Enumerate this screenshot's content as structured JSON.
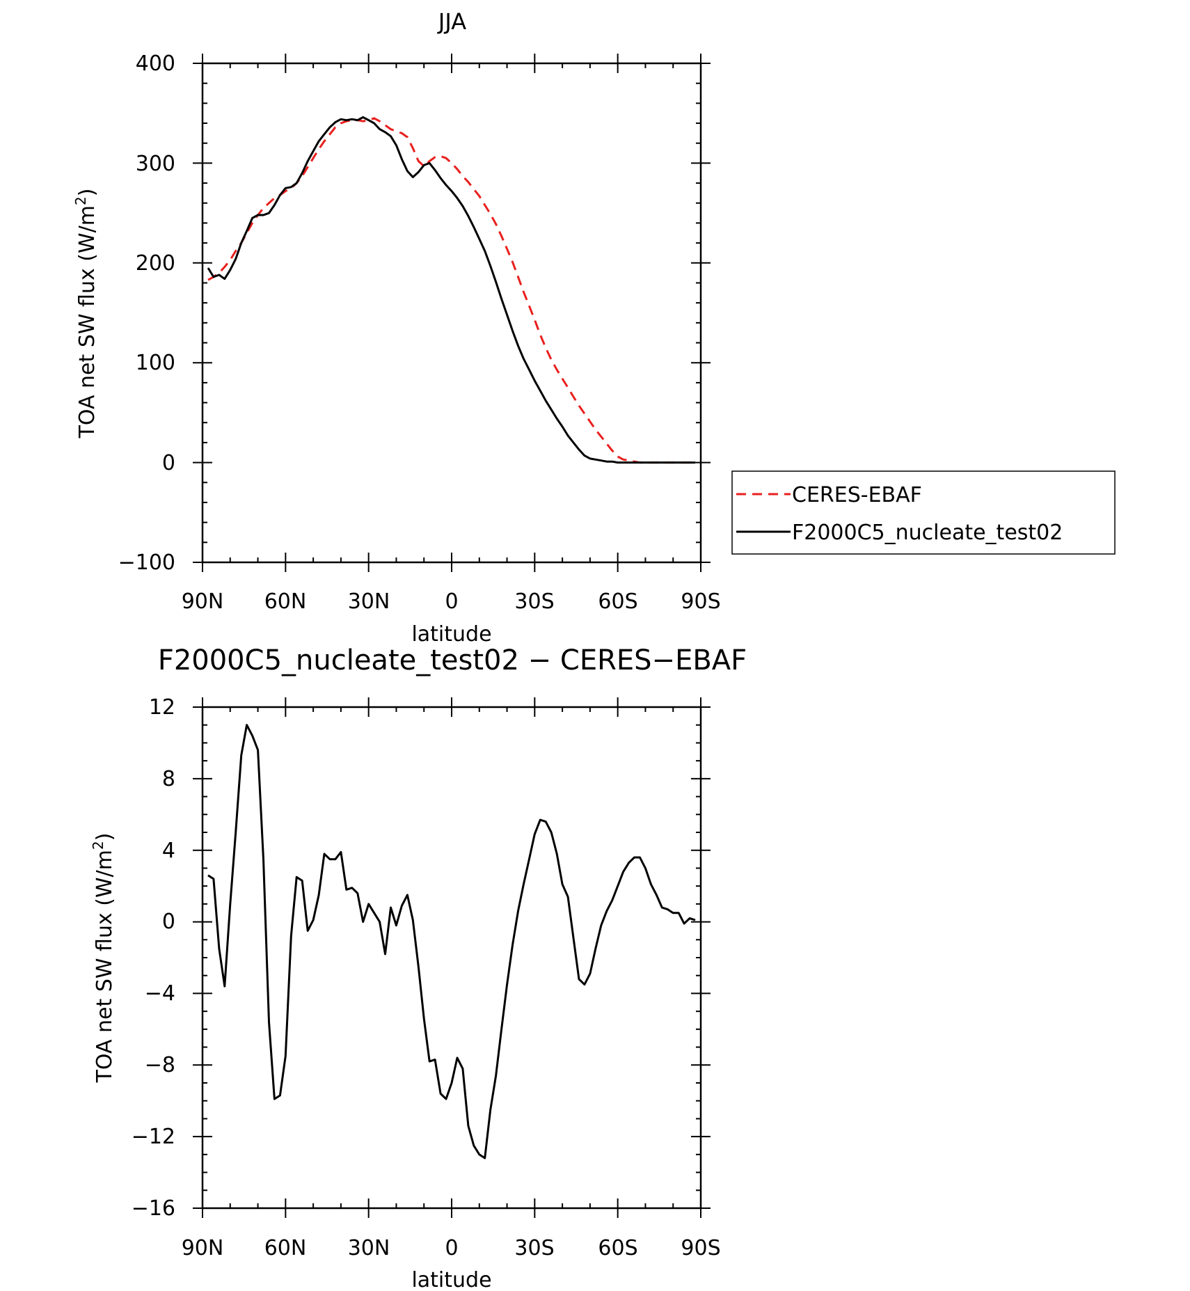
{
  "chart_data": [
    {
      "type": "line",
      "title": "JJA",
      "xlabel": "latitude",
      "ylabel_main": "TOA net SW flux (W/m",
      "ylabel_sup": "2",
      "ylabel_close": ")",
      "xlim": [
        90,
        -90
      ],
      "ylim": [
        -100,
        400
      ],
      "xticks": [
        90,
        60,
        30,
        0,
        -30,
        -60,
        -90
      ],
      "xtick_labels": [
        "90N",
        "60N",
        "30N",
        "0",
        "30S",
        "60S",
        "90S"
      ],
      "yticks": [
        -100,
        0,
        100,
        200,
        300,
        400
      ],
      "ytick_labels": [
        "−100",
        "0",
        "100",
        "200",
        "300",
        "400"
      ],
      "legend_position": "right",
      "series": [
        {
          "name": "CERES-EBAF",
          "color": "#e8201e",
          "dash": "dashed",
          "x": [
            88,
            86,
            84,
            82,
            80,
            78,
            76,
            74,
            72,
            70,
            68,
            66,
            64,
            62,
            60,
            58,
            56,
            54,
            52,
            50,
            48,
            46,
            44,
            42,
            40,
            38,
            36,
            34,
            32,
            30,
            28,
            26,
            24,
            22,
            20,
            18,
            16,
            14,
            12,
            10,
            8,
            6,
            4,
            2,
            0,
            -2,
            -4,
            -6,
            -8,
            -10,
            -12,
            -14,
            -16,
            -18,
            -20,
            -22,
            -24,
            -26,
            -28,
            -30,
            -32,
            -34,
            -36,
            -38,
            -40,
            -42,
            -44,
            -46,
            -48,
            -50,
            -52,
            -54,
            -56,
            -58,
            -60,
            -62,
            -64,
            -66,
            -68,
            -70,
            -72,
            -74,
            -76,
            -78,
            -80,
            -82,
            -84,
            -86,
            -88
          ],
          "y": [
            183,
            186,
            190,
            196,
            203,
            212,
            220,
            230,
            240,
            248,
            255,
            260,
            265,
            268,
            272,
            275,
            280,
            287,
            296,
            305,
            314,
            322,
            329,
            336,
            340,
            342,
            343,
            343,
            342,
            343,
            345,
            342,
            338,
            334,
            332,
            330,
            326,
            315,
            302,
            297,
            302,
            306,
            307,
            305,
            300,
            294,
            287,
            281,
            274,
            267,
            258,
            249,
            239,
            227,
            214,
            201,
            186,
            171,
            157,
            143,
            128,
            115,
            103,
            93,
            84,
            75,
            66,
            57,
            49,
            41,
            33,
            26,
            19,
            12,
            6,
            3,
            2,
            1,
            0,
            0,
            0,
            0,
            0,
            0,
            0,
            0,
            0,
            0,
            0
          ]
        },
        {
          "name": "F2000C5_nucleate_test02",
          "color": "#000000",
          "dash": "solid",
          "x": [
            88,
            86,
            84,
            82,
            80,
            78,
            76,
            74,
            72,
            70,
            68,
            66,
            64,
            62,
            60,
            58,
            56,
            54,
            52,
            50,
            48,
            46,
            44,
            42,
            40,
            38,
            36,
            34,
            32,
            30,
            28,
            26,
            24,
            22,
            20,
            18,
            16,
            14,
            12,
            10,
            8,
            6,
            4,
            2,
            0,
            -2,
            -4,
            -6,
            -8,
            -10,
            -12,
            -14,
            -16,
            -18,
            -20,
            -22,
            -24,
            -26,
            -28,
            -30,
            -32,
            -34,
            -36,
            -38,
            -40,
            -42,
            -44,
            -46,
            -48,
            -50,
            -52,
            -54,
            -56,
            -58,
            -60,
            -62,
            -64,
            -66,
            -68,
            -70,
            -72,
            -74,
            -76,
            -78,
            -80,
            -82,
            -84,
            -86,
            -88
          ],
          "y": [
            195,
            186,
            188,
            184,
            193,
            204,
            220,
            232,
            245,
            248,
            248,
            250,
            258,
            268,
            275,
            276,
            280,
            290,
            302,
            312,
            322,
            329,
            336,
            341,
            344,
            343,
            344,
            343,
            346,
            343,
            340,
            334,
            331,
            327,
            318,
            304,
            292,
            286,
            291,
            298,
            300,
            293,
            285,
            278,
            272,
            265,
            257,
            247,
            236,
            224,
            212,
            197,
            181,
            164,
            148,
            132,
            117,
            104,
            93,
            82,
            72,
            62,
            53,
            44,
            36,
            27,
            20,
            13,
            7,
            4,
            3,
            2,
            1,
            1,
            0,
            0,
            0,
            0,
            0,
            0,
            0,
            0,
            0,
            0,
            0,
            0,
            0,
            0,
            0
          ]
        }
      ]
    },
    {
      "type": "line",
      "title": "F2000C5_nucleate_test02 − CERES−EBAF",
      "xlabel": "latitude",
      "ylabel_main": "TOA net SW flux (W/m",
      "ylabel_sup": "2",
      "ylabel_close": ")",
      "xlim": [
        90,
        -90
      ],
      "ylim": [
        -16,
        12
      ],
      "xticks": [
        90,
        60,
        30,
        0,
        -30,
        -60,
        -90
      ],
      "xtick_labels": [
        "90N",
        "60N",
        "30N",
        "0",
        "30S",
        "60S",
        "90S"
      ],
      "yticks": [
        -16,
        -12,
        -8,
        -4,
        0,
        4,
        8,
        12
      ],
      "ytick_labels": [
        "−16",
        "−12",
        "−8",
        "−4",
        "0",
        "4",
        "8",
        "12"
      ],
      "series": [
        {
          "color": "#000000",
          "dash": "solid",
          "x": [
            88,
            86,
            84,
            82,
            80,
            78,
            76,
            74,
            72,
            70,
            68,
            66,
            64,
            62,
            60,
            58,
            56,
            54,
            52,
            50,
            48,
            46,
            44,
            42,
            40,
            38,
            36,
            34,
            32,
            30,
            28,
            26,
            24,
            22,
            20,
            18,
            16,
            14,
            12,
            10,
            8,
            6,
            4,
            2,
            0,
            -2,
            -4,
            -6,
            -8,
            -10,
            -12,
            -14,
            -16,
            -18,
            -20,
            -22,
            -24,
            -26,
            -28,
            -30,
            -32,
            -34,
            -36,
            -38,
            -40,
            -42,
            -44,
            -46,
            -48,
            -50,
            -52,
            -54,
            -56,
            -58,
            -60,
            -62,
            -64,
            -66,
            -68,
            -70,
            -72,
            -74,
            -76,
            -78,
            -80,
            -82,
            -84,
            -86,
            -88
          ],
          "y": [
            2.6,
            2.4,
            -1.5,
            -3.6,
            1.0,
            5.0,
            9.3,
            11.0,
            10.4,
            9.6,
            3.5,
            -5.6,
            -9.9,
            -9.7,
            -7.5,
            -0.8,
            2.5,
            2.3,
            -0.5,
            0.1,
            1.5,
            3.8,
            3.5,
            3.5,
            3.9,
            1.8,
            1.9,
            1.6,
            0.0,
            1.0,
            0.5,
            0.0,
            -1.8,
            0.8,
            -0.2,
            0.9,
            1.5,
            0.1,
            -2.5,
            -5.4,
            -7.8,
            -7.7,
            -9.6,
            -9.9,
            -9.0,
            -7.6,
            -8.2,
            -11.4,
            -12.5,
            -13.0,
            -13.2,
            -10.5,
            -8.6,
            -6.0,
            -3.5,
            -1.3,
            0.6,
            2.1,
            3.5,
            4.9,
            5.7,
            5.6,
            5.0,
            3.8,
            2.1,
            1.4,
            -0.9,
            -3.2,
            -3.5,
            -2.9,
            -1.5,
            -0.2,
            0.6,
            1.2,
            2.0,
            2.8,
            3.3,
            3.6,
            3.6,
            3.0,
            2.1,
            1.5,
            0.8,
            0.7,
            0.5,
            0.5,
            -0.1,
            0.2,
            0.1
          ]
        }
      ]
    }
  ]
}
